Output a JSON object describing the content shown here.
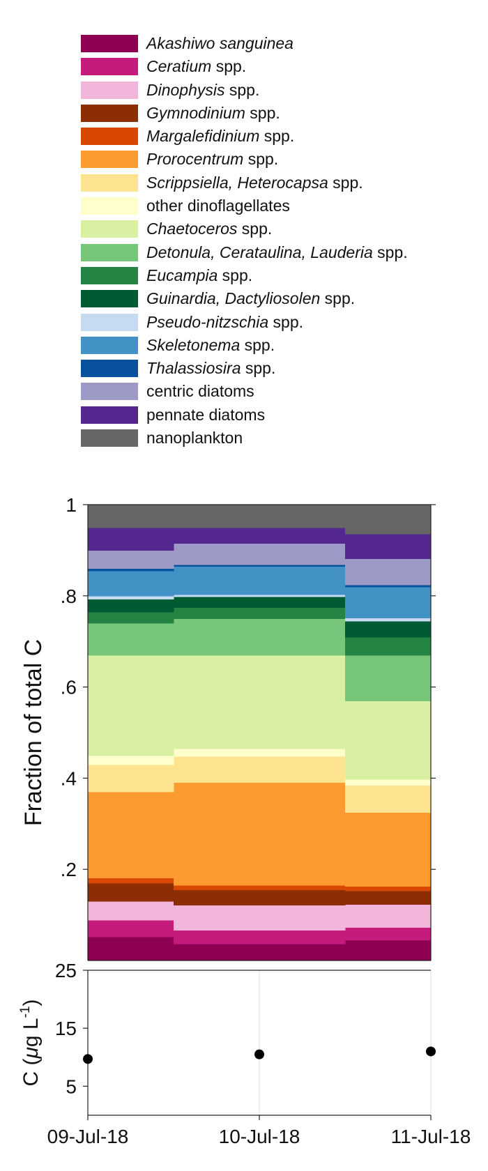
{
  "chart_data": [
    {
      "type": "area",
      "stacked": true,
      "step": true,
      "ylabel": "Fraction of total C",
      "ylim": [
        0,
        1
      ],
      "yticks": [
        0.2,
        0.4,
        0.6,
        0.8,
        1
      ],
      "ytick_labels": [
        ".2",
        ".4",
        ".6",
        ".8",
        "1"
      ],
      "x_segments": [
        {
          "from": 0,
          "to": 0.5
        },
        {
          "from": 0.5,
          "to": 1.5
        },
        {
          "from": 1.5,
          "to": 2
        }
      ],
      "legend": "top",
      "series": [
        {
          "name_italic": "Akashiwo sanguinea",
          "name_plain": "",
          "color": "#8e0152",
          "values": [
            0.052,
            0.037,
            0.045
          ]
        },
        {
          "name_italic": "Ceratium",
          "name_plain": " spp.",
          "color": "#c51b7d",
          "values": [
            0.037,
            0.03,
            0.028
          ]
        },
        {
          "name_italic": "Dinophysis",
          "name_plain": " spp.",
          "color": "#f1b6da",
          "values": [
            0.041,
            0.055,
            0.05
          ]
        },
        {
          "name_italic": "Gymnodinium",
          "name_plain": " spp.",
          "color": "#8c2d04",
          "values": [
            0.04,
            0.033,
            0.03
          ]
        },
        {
          "name_italic": "Margalefidinium",
          "name_plain": " spp.",
          "color": "#d94801",
          "values": [
            0.011,
            0.01,
            0.01
          ]
        },
        {
          "name_italic": "Prorocentrum",
          "name_plain": " spp.",
          "color": "#fd9a30",
          "values": [
            0.189,
            0.226,
            0.162
          ]
        },
        {
          "name_italic": "Scrippsiella, Heterocapsa",
          "name_plain": " spp.",
          "color": "#fee391",
          "values": [
            0.06,
            0.057,
            0.06
          ]
        },
        {
          "name_italic": "",
          "name_plain": "other dinoflagellates",
          "color": "#ffffcc",
          "values": [
            0.02,
            0.017,
            0.013
          ]
        },
        {
          "name_italic": "Chaetoceros",
          "name_plain": " spp.",
          "color": "#d9f0a3",
          "values": [
            0.22,
            0.205,
            0.172
          ]
        },
        {
          "name_italic": "Detonula, Cerataulina, Lauderia",
          "name_plain": " spp.",
          "color": "#78c679",
          "values": [
            0.07,
            0.08,
            0.1
          ]
        },
        {
          "name_italic": "Eucampia",
          "name_plain": " spp.",
          "color": "#238443",
          "values": [
            0.025,
            0.025,
            0.04
          ]
        },
        {
          "name_italic": "Guinardia, Dactyliosolen",
          "name_plain": " spp.",
          "color": "#005a32",
          "values": [
            0.028,
            0.023,
            0.035
          ]
        },
        {
          "name_italic": "Pseudo-nitzschia",
          "name_plain": " spp.",
          "color": "#c6dbef",
          "values": [
            0.007,
            0.005,
            0.007
          ]
        },
        {
          "name_italic": "Skeletonema",
          "name_plain": " spp.",
          "color": "#4292c6",
          "values": [
            0.055,
            0.062,
            0.068
          ]
        },
        {
          "name_italic": "Thalassiosira",
          "name_plain": " spp.",
          "color": "#08519c",
          "values": [
            0.005,
            0.004,
            0.004
          ]
        },
        {
          "name_italic": "",
          "name_plain": "centric diatoms",
          "color": "#9e9ac8",
          "values": [
            0.04,
            0.046,
            0.058
          ]
        },
        {
          "name_italic": "",
          "name_plain": "pennate diatoms",
          "color": "#54278f",
          "values": [
            0.05,
            0.035,
            0.054
          ]
        },
        {
          "name_italic": "",
          "name_plain": "nanoplankton",
          "color": "#666666",
          "values": [
            0.05,
            0.05,
            0.064
          ]
        }
      ]
    },
    {
      "type": "scatter",
      "ylabel_prefix": "C (",
      "ylabel_mu": "μ",
      "ylabel_unit": "g L",
      "ylabel_exp": "-1",
      "ylabel_suffix": ")",
      "ylim": [
        0,
        25
      ],
      "yticks": [
        5,
        15,
        25
      ],
      "ytick_labels": [
        "5",
        "15",
        "25"
      ],
      "categories": [
        "09-Jul-18",
        "10-Jul-18",
        "11-Jul-18"
      ],
      "x": [
        0,
        1,
        2
      ],
      "values": [
        9.7,
        10.5,
        11.0
      ],
      "color": "#000000",
      "grid": "vertical"
    }
  ]
}
